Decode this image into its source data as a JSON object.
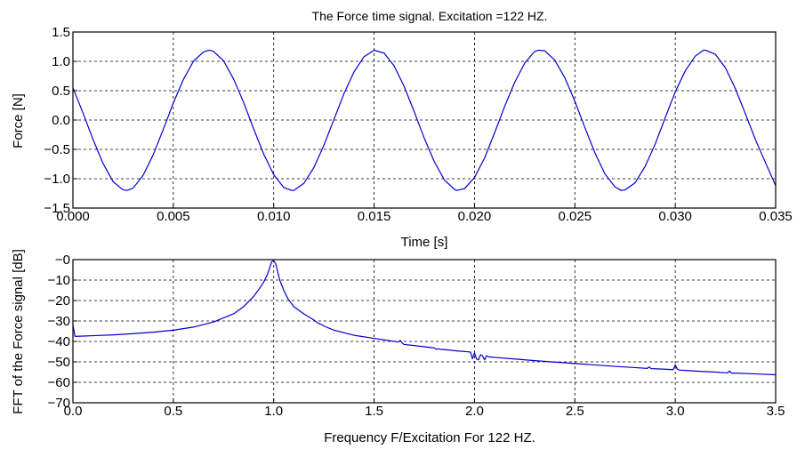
{
  "figure": {
    "background": "#ffffff",
    "line_color": "#0000cc",
    "grid_color": "#000000"
  },
  "chart_data": [
    {
      "type": "line",
      "title": "The Force time signal. Excitation =122 HZ.",
      "xlabel": "Time [s]",
      "ylabel": "Force [N]",
      "xlim": [
        0,
        0.035
      ],
      "ylim": [
        -1.5,
        1.5
      ],
      "xticks": [
        0,
        0.005,
        0.01,
        0.015,
        0.02,
        0.025,
        0.03,
        0.035
      ],
      "xtick_labels": [
        "0.000",
        "0.005",
        "0.010",
        "0.015",
        "0.020",
        "0.025",
        "0.030",
        "0.035"
      ],
      "yticks": [
        1.5,
        1.0,
        0.5,
        0.0,
        -0.5,
        -1.0,
        -1.5
      ],
      "ytick_labels": [
        "1.5",
        "1.0",
        "0.5",
        "0.0",
        "−0.5",
        "−1.0",
        "−1.5"
      ],
      "grid": true,
      "series": [
        {
          "x": [
            0.0,
            0.0005,
            0.001,
            0.0015,
            0.002,
            0.0025,
            0.0027,
            0.003,
            0.0035,
            0.004,
            0.0045,
            0.005,
            0.0055,
            0.006,
            0.0065,
            0.0068,
            0.007,
            0.0075,
            0.008,
            0.0085,
            0.009,
            0.0095,
            0.01,
            0.0105,
            0.0109,
            0.011,
            0.0115,
            0.012,
            0.0125,
            0.013,
            0.0135,
            0.014,
            0.0145,
            0.015,
            0.0155,
            0.016,
            0.0165,
            0.017,
            0.0175,
            0.018,
            0.0185,
            0.019,
            0.0191,
            0.0195,
            0.02,
            0.0205,
            0.021,
            0.0215,
            0.022,
            0.0225,
            0.023,
            0.0232,
            0.0235,
            0.024,
            0.0245,
            0.025,
            0.0255,
            0.026,
            0.0265,
            0.027,
            0.0273,
            0.0275,
            0.028,
            0.0285,
            0.029,
            0.0295,
            0.03,
            0.0305,
            0.031,
            0.0314,
            0.0315,
            0.032,
            0.0325,
            0.033,
            0.0335,
            0.034,
            0.0345,
            0.035
          ],
          "y": [
            0.55,
            0.12,
            -0.33,
            -0.74,
            -1.05,
            -1.19,
            -1.2,
            -1.16,
            -0.94,
            -0.59,
            -0.16,
            0.29,
            0.69,
            1.0,
            1.16,
            1.19,
            1.17,
            1.01,
            0.7,
            0.3,
            -0.15,
            -0.58,
            -0.93,
            -1.15,
            -1.2,
            -1.2,
            -1.08,
            -0.81,
            -0.43,
            0.01,
            0.45,
            0.82,
            1.08,
            1.19,
            1.14,
            0.92,
            0.57,
            0.14,
            -0.31,
            -0.71,
            -1.02,
            -1.18,
            -1.2,
            -1.17,
            -0.98,
            -0.65,
            -0.22,
            0.23,
            0.64,
            0.97,
            1.17,
            1.19,
            1.18,
            1.02,
            0.72,
            0.32,
            -0.13,
            -0.56,
            -0.92,
            -1.14,
            -1.2,
            -1.19,
            -1.07,
            -0.79,
            -0.41,
            0.04,
            0.48,
            0.84,
            1.09,
            1.19,
            1.19,
            1.12,
            0.89,
            0.53,
            0.1,
            -0.34,
            -0.73,
            -1.12
          ]
        }
      ]
    },
    {
      "type": "line",
      "title": "",
      "xlabel": "Frequency F/Excitation For 122 HZ.",
      "ylabel": "FFT of the Force signal  [dB]",
      "xlim": [
        0,
        3.5
      ],
      "ylim": [
        -70,
        0
      ],
      "xticks": [
        0,
        0.5,
        1.0,
        1.5,
        2.0,
        2.5,
        3.0,
        3.5
      ],
      "xtick_labels": [
        "0.0",
        "0.5",
        "1.0",
        "1.5",
        "2.0",
        "2.5",
        "3.0",
        "3.5"
      ],
      "yticks": [
        0,
        -10,
        -20,
        -30,
        -40,
        -50,
        -60,
        -70
      ],
      "ytick_labels": [
        "−0",
        "−10",
        "−20",
        "−30",
        "−40",
        "−50",
        "−60",
        "−70"
      ],
      "grid": true,
      "series": [
        {
          "x": [
            0.0,
            0.01,
            0.02,
            0.05,
            0.1,
            0.2,
            0.3,
            0.4,
            0.5,
            0.6,
            0.7,
            0.8,
            0.85,
            0.9,
            0.93,
            0.95,
            0.97,
            0.98,
            0.99,
            1.0,
            1.01,
            1.02,
            1.03,
            1.05,
            1.07,
            1.1,
            1.15,
            1.2,
            1.22,
            1.23,
            1.25,
            1.3,
            1.4,
            1.5,
            1.6,
            1.62,
            1.63,
            1.64,
            1.65,
            1.7,
            1.8,
            1.81,
            1.82,
            1.83,
            1.9,
            1.98,
            1.99,
            2.0,
            2.01,
            2.02,
            2.03,
            2.04,
            2.05,
            2.06,
            2.07,
            2.1,
            2.2,
            2.3,
            2.4,
            2.5,
            2.6,
            2.7,
            2.8,
            2.86,
            2.87,
            2.88,
            2.95,
            2.99,
            3.0,
            3.01,
            3.02,
            3.05,
            3.1,
            3.2,
            3.26,
            3.27,
            3.28,
            3.3,
            3.4,
            3.5
          ],
          "y": [
            -32,
            -37.5,
            -37.5,
            -37.4,
            -37.2,
            -36.8,
            -36.2,
            -35.5,
            -34.5,
            -33,
            -30.5,
            -26.5,
            -23,
            -18,
            -14,
            -11,
            -7,
            -4,
            -1,
            -0.5,
            -2,
            -6,
            -10,
            -15,
            -19,
            -23,
            -26.5,
            -29.5,
            -31,
            -31.3,
            -32.5,
            -34.5,
            -37,
            -38.5,
            -40,
            -40.3,
            -39.5,
            -40.8,
            -41.5,
            -42,
            -43.2,
            -43.8,
            -43.6,
            -43.8,
            -44.5,
            -45.2,
            -48.5,
            -45.5,
            -48.5,
            -49,
            -46.5,
            -47,
            -49,
            -47,
            -47.5,
            -47.8,
            -48.6,
            -49.4,
            -50.1,
            -50.8,
            -51.5,
            -52.2,
            -52.8,
            -53.2,
            -52.5,
            -53.3,
            -53.6,
            -53.8,
            -51.5,
            -53.5,
            -54,
            -54.2,
            -54.5,
            -55,
            -55.4,
            -54.5,
            -55.5,
            -55.5,
            -55.9,
            -56.3
          ]
        }
      ]
    }
  ]
}
